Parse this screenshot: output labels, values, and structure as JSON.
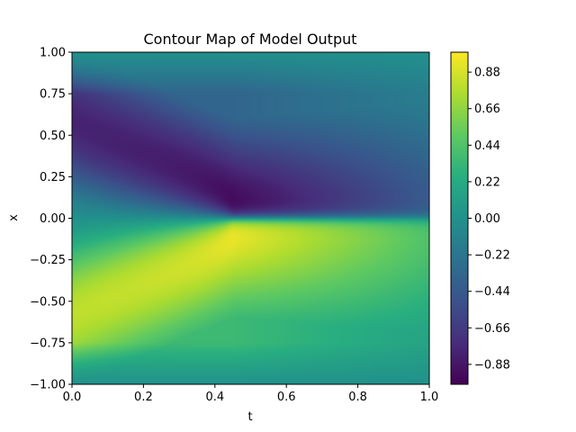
{
  "chart_data": {
    "type": "heatmap",
    "title": "Contour Map of Model Output",
    "xlabel": "t",
    "ylabel": "x",
    "xlim": [
      0,
      1
    ],
    "ylim": [
      -1,
      1
    ],
    "x_ticks": [
      "0.0",
      "0.2",
      "0.4",
      "0.6",
      "0.8",
      "1.0"
    ],
    "y_ticks": [
      "1.00",
      "0.75",
      "0.50",
      "0.25",
      "0.00",
      "−0.25",
      "−0.50",
      "−0.75",
      "−1.00"
    ],
    "colorbar": {
      "range": [
        -1,
        1
      ],
      "ticks": [
        "0.88",
        "0.66",
        "0.44",
        "0.22",
        "0.00",
        "−0.22",
        "−0.44",
        "−0.66",
        "−0.88"
      ],
      "tick_values": [
        0.88,
        0.66,
        0.44,
        0.22,
        0.0,
        -0.22,
        -0.44,
        -0.66,
        -0.88
      ],
      "colormap": "viridis"
    },
    "colormap_stops": [
      "#440154",
      "#472d7b",
      "#3b528b",
      "#2c728e",
      "#21918c",
      "#28ae80",
      "#5ec962",
      "#addc30",
      "#fde725"
    ],
    "field": {
      "description_points": [
        {
          "t": 0.0,
          "x": 0.5,
          "value": -1.0
        },
        {
          "t": 0.0,
          "x": -0.5,
          "value": 1.0
        },
        {
          "t": 0.45,
          "x": 0.05,
          "value": -0.95
        },
        {
          "t": 0.45,
          "x": -0.05,
          "value": 0.95
        },
        {
          "t": 1.0,
          "x": 0.5,
          "value": -0.6
        },
        {
          "t": 1.0,
          "x": -0.5,
          "value": 0.6
        },
        {
          "t": 0.0,
          "x": 1.0,
          "value": 0.0
        },
        {
          "t": 0.0,
          "x": -1.0,
          "value": 0.0
        }
      ]
    }
  }
}
